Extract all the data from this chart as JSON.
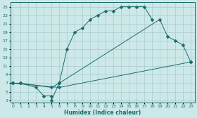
{
  "bg_color": "#cde8e8",
  "grid_color": "#a8cccc",
  "line_color": "#1a6b6b",
  "curve1_x": [
    0,
    1,
    3,
    4,
    5,
    5,
    6,
    7,
    8,
    9,
    10,
    11,
    12,
    13,
    14,
    15,
    16,
    17,
    18
  ],
  "curve1_y": [
    7,
    7,
    6,
    4,
    4,
    3,
    7,
    15,
    19,
    20,
    22,
    23,
    24,
    24,
    25,
    25,
    25,
    25,
    22
  ],
  "curve2_x": [
    0,
    1,
    5,
    6,
    19,
    20,
    21,
    22,
    23
  ],
  "curve2_y": [
    7,
    7,
    6,
    7,
    22,
    18,
    17,
    16,
    12
  ],
  "curve3_x": [
    0,
    6,
    23
  ],
  "curve3_y": [
    7,
    6,
    12
  ],
  "xlim": [
    -0.3,
    23.5
  ],
  "ylim": [
    2.5,
    26
  ],
  "xticks": [
    0,
    1,
    2,
    3,
    4,
    5,
    6,
    7,
    8,
    9,
    10,
    11,
    12,
    13,
    14,
    15,
    16,
    17,
    18,
    19,
    20,
    21,
    22,
    23
  ],
  "yticks": [
    3,
    5,
    7,
    9,
    11,
    13,
    15,
    17,
    19,
    21,
    23,
    25
  ],
  "xlabel": "Humidex (Indice chaleur)",
  "markersize": 2.5
}
